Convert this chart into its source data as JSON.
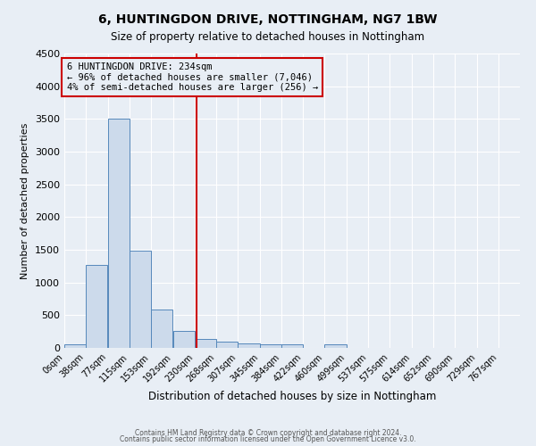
{
  "title": "6, HUNTINGDON DRIVE, NOTTINGHAM, NG7 1BW",
  "subtitle": "Size of property relative to detached houses in Nottingham",
  "xlabel": "Distribution of detached houses by size in Nottingham",
  "ylabel": "Number of detached properties",
  "bar_values": [
    50,
    1275,
    3500,
    1480,
    580,
    255,
    140,
    95,
    65,
    50,
    50,
    0,
    50,
    0,
    0,
    0,
    0,
    0,
    0,
    0,
    0
  ],
  "bin_width": 38,
  "bin_starts": [
    0,
    38,
    77,
    115,
    153,
    192,
    230,
    268,
    307,
    345,
    384,
    422,
    460,
    499,
    537,
    575,
    614,
    652,
    690,
    729,
    767
  ],
  "x_tick_labels": [
    "0sqm",
    "38sqm",
    "77sqm",
    "115sqm",
    "153sqm",
    "192sqm",
    "230sqm",
    "268sqm",
    "307sqm",
    "345sqm",
    "384sqm",
    "422sqm",
    "460sqm",
    "499sqm",
    "537sqm",
    "575sqm",
    "614sqm",
    "652sqm",
    "690sqm",
    "729sqm",
    "767sqm"
  ],
  "property_size": 234,
  "vline_color": "#cc0000",
  "bar_facecolor": "#ccdaeb",
  "bar_edgecolor": "#5588bb",
  "ylim": [
    0,
    4500
  ],
  "yticks": [
    0,
    500,
    1000,
    1500,
    2000,
    2500,
    3000,
    3500,
    4000,
    4500
  ],
  "annotation_line1": "6 HUNTINGDON DRIVE: 234sqm",
  "annotation_line2": "← 96% of detached houses are smaller (7,046)",
  "annotation_line3": "4% of semi-detached houses are larger (256) →",
  "annotation_box_color": "#cc0000",
  "bg_color": "#e8eef5",
  "grid_color": "#ffffff",
  "footer_line1": "Contains HM Land Registry data © Crown copyright and database right 2024.",
  "footer_line2": "Contains public sector information licensed under the Open Government Licence v3.0."
}
